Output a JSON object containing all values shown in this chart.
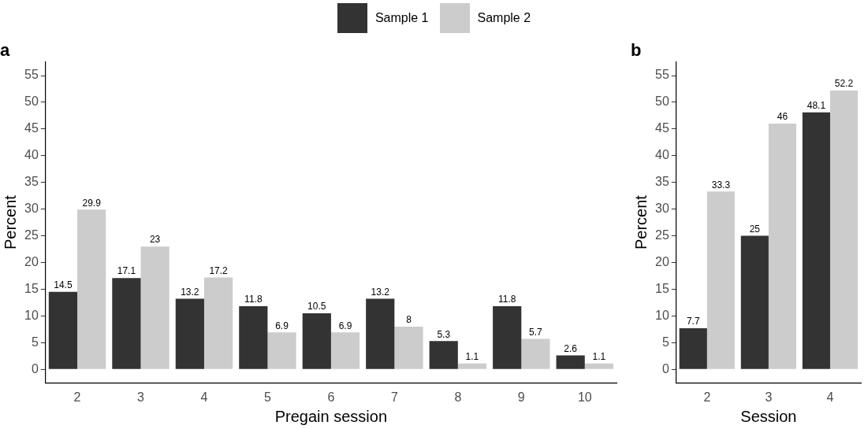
{
  "chart_data": [
    {
      "type": "bar",
      "title": "a",
      "xlabel": "Pregain session",
      "ylabel": "Percent",
      "categories": [
        "2",
        "3",
        "4",
        "5",
        "6",
        "7",
        "8",
        "9",
        "10"
      ],
      "series": [
        {
          "name": "Sample 1",
          "color": "#333333",
          "values": [
            14.5,
            17.1,
            13.2,
            11.8,
            10.5,
            13.2,
            5.3,
            11.8,
            2.6
          ]
        },
        {
          "name": "Sample 2",
          "color": "#cccccc",
          "values": [
            29.9,
            23,
            17.2,
            6.9,
            6.9,
            8,
            1.1,
            5.7,
            1.1
          ]
        }
      ],
      "ylim": [
        -2.6,
        57.6
      ],
      "yticks": [
        0,
        5,
        10,
        15,
        20,
        25,
        30,
        35,
        40,
        45,
        50,
        55
      ],
      "grid": false,
      "legend": "top",
      "data_labels": true
    },
    {
      "type": "bar",
      "title": "b",
      "xlabel": "Session",
      "ylabel": "Percent",
      "categories": [
        "2",
        "3",
        "4"
      ],
      "series": [
        {
          "color": "#333333",
          "values": [
            7.7,
            25,
            48.1
          ]
        },
        {
          "color": "#cccccc",
          "values": [
            33.3,
            46,
            52.2
          ]
        }
      ],
      "ylim": [
        -2.6,
        57.6
      ],
      "yticks": [
        0,
        5,
        10,
        15,
        20,
        25,
        30,
        35,
        40,
        45,
        50,
        55
      ],
      "grid": false,
      "data_labels": true
    }
  ]
}
